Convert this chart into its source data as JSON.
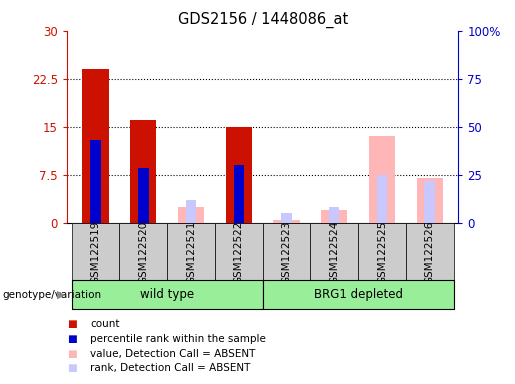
{
  "title": "GDS2156 / 1448086_at",
  "samples": [
    "GSM122519",
    "GSM122520",
    "GSM122521",
    "GSM122522",
    "GSM122523",
    "GSM122524",
    "GSM122525",
    "GSM122526"
  ],
  "present": [
    true,
    true,
    false,
    true,
    false,
    false,
    false,
    false
  ],
  "count_values": [
    24.0,
    16.0,
    0,
    15.0,
    0,
    0,
    0,
    0
  ],
  "rank_values": [
    13.0,
    8.5,
    0,
    9.0,
    0,
    0,
    0,
    0
  ],
  "absent_value": [
    0,
    0,
    2.5,
    0,
    0.5,
    2.0,
    13.5,
    7.0
  ],
  "absent_rank": [
    0,
    0,
    3.5,
    0,
    1.5,
    2.5,
    7.5,
    6.5
  ],
  "ylim": [
    0,
    30
  ],
  "yticks": [
    0,
    7.5,
    15,
    22.5,
    30
  ],
  "ytick_labels": [
    "0",
    "7.5",
    "15",
    "22.5",
    "30"
  ],
  "y2ticks": [
    0,
    25,
    50,
    75,
    100
  ],
  "y2tick_labels": [
    "0",
    "25",
    "50",
    "75",
    "100%"
  ],
  "color_count": "#CC1100",
  "color_rank": "#0000CC",
  "color_absent_value": "#FFB6B6",
  "color_absent_rank": "#C8C8FF",
  "bg_color": "#CCCCCC",
  "plot_bg": "#FFFFFF",
  "left_axis_color": "#CC1100",
  "right_axis_color": "#0000CC",
  "light_green": "#99EE99",
  "group_ranges": [
    [
      0,
      3,
      "wild type"
    ],
    [
      4,
      7,
      "BRG1 depleted"
    ]
  ],
  "legend_items": [
    [
      "#CC1100",
      "count"
    ],
    [
      "#0000CC",
      "percentile rank within the sample"
    ],
    [
      "#FFB6B6",
      "value, Detection Call = ABSENT"
    ],
    [
      "#C8C8FF",
      "rank, Detection Call = ABSENT"
    ]
  ]
}
